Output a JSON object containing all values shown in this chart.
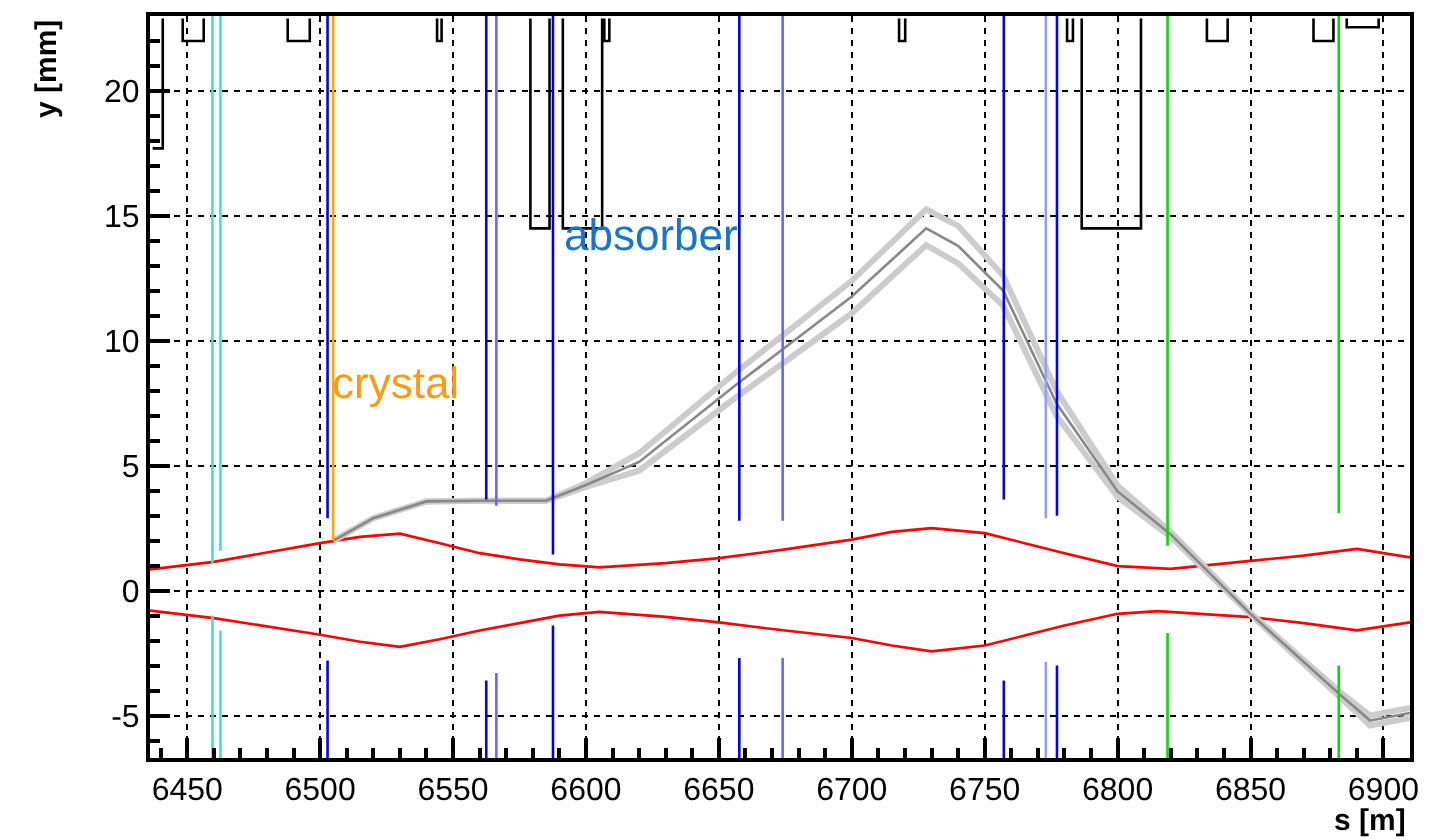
{
  "chart_data": {
    "type": "line",
    "xlabel": "s [m]",
    "ylabel": "y [mm]",
    "xlim": [
      6436,
      6910
    ],
    "xticks": [
      6450,
      6500,
      6550,
      6600,
      6650,
      6700,
      6750,
      6800,
      6850,
      6900
    ],
    "ylim": [
      -6.7,
      23.0
    ],
    "yticks": [
      -5,
      0,
      5,
      10,
      15,
      20
    ],
    "grid": true,
    "marker": "none",
    "line_style": "solid",
    "annotations": [
      {
        "text": "crystal",
        "x": 6503,
        "y": 8.3
      },
      {
        "text": "absorber",
        "x": 6590,
        "y": 14.2
      }
    ],
    "series": [
      {
        "color": "#000000",
        "x": [
          6440.8,
          6440.8,
          6437
        ],
        "values": [
          22.9,
          17.7,
          17.7
        ]
      },
      {
        "color": "#000000",
        "x": [
          6448.3,
          6448.3,
          6456.2,
          6456.2
        ],
        "values": [
          22.9,
          22.0,
          22.0,
          22.9
        ]
      },
      {
        "color": "#000000",
        "x": [
          6487.8,
          6487.8,
          6496.1,
          6496.1
        ],
        "values": [
          22.9,
          22.0,
          22.0,
          22.9
        ]
      },
      {
        "color": "#000000",
        "x": [
          6544.0,
          6544.0,
          6545.7,
          6545.7
        ],
        "values": [
          22.9,
          22.0,
          22.0,
          22.9
        ]
      },
      {
        "color": "#000000",
        "x": [
          6579.1,
          6579.1,
          6586.3,
          6586.3
        ],
        "values": [
          22.9,
          14.5,
          14.5,
          22.9
        ]
      },
      {
        "color": "#000000",
        "x": [
          6591.3,
          6591.3,
          6606.1,
          6606.1
        ],
        "values": [
          22.9,
          14.5,
          14.5,
          22.9
        ]
      },
      {
        "color": "#000000",
        "x": [
          6606.9,
          6606.9,
          6608.8,
          6608.8
        ],
        "values": [
          22.9,
          22.0,
          22.0,
          22.9
        ]
      },
      {
        "color": "#000000",
        "x": [
          6717.8,
          6717.8,
          6720.1,
          6720.1
        ],
        "values": [
          22.9,
          22.0,
          22.0,
          22.9
        ]
      },
      {
        "color": "#000000",
        "x": [
          6781.0,
          6781.0,
          6783.2,
          6783.2
        ],
        "values": [
          22.9,
          22.0,
          22.0,
          22.9
        ]
      },
      {
        "color": "#000000",
        "x": [
          6786.5,
          6786.5,
          6808.8,
          6808.8
        ],
        "values": [
          22.9,
          14.5,
          14.5,
          22.9
        ]
      },
      {
        "color": "#000000",
        "x": [
          6833.6,
          6833.6,
          6841.4,
          6841.4
        ],
        "values": [
          22.9,
          22.0,
          22.0,
          22.9
        ]
      },
      {
        "color": "#000000",
        "x": [
          6873.7,
          6873.7,
          6881.2,
          6881.2
        ],
        "values": [
          22.9,
          22.0,
          22.0,
          22.9
        ]
      },
      {
        "color": "#000000",
        "x": [
          6886.2,
          6886.2,
          6898.2,
          6898.2
        ],
        "values": [
          22.9,
          22.55,
          22.55,
          22.9
        ]
      },
      {
        "color": "#ff0000",
        "x": [
          6436,
          6460,
          6500,
          6515,
          6530,
          6545,
          6560,
          6575,
          6590,
          6605,
          6630,
          6650,
          6675,
          6700,
          6715,
          6730,
          6750,
          6765,
          6780,
          6800,
          6820,
          6850,
          6870,
          6890,
          6910
        ],
        "values": [
          0.85,
          1.15,
          1.9,
          2.15,
          2.28,
          1.9,
          1.5,
          1.25,
          1.05,
          0.93,
          1.1,
          1.3,
          1.65,
          2.04,
          2.35,
          2.5,
          2.3,
          1.9,
          1.5,
          0.98,
          0.87,
          1.19,
          1.4,
          1.67,
          1.33
        ]
      },
      {
        "color": "#ff0000",
        "x": [
          6436,
          6460,
          6500,
          6515,
          6530,
          6545,
          6560,
          6575,
          6590,
          6605,
          6630,
          6650,
          6675,
          6700,
          6715,
          6730,
          6750,
          6765,
          6780,
          6800,
          6815,
          6850,
          6870,
          6890,
          6910
        ],
        "values": [
          -0.8,
          -1.1,
          -1.77,
          -2.05,
          -2.25,
          -1.95,
          -1.6,
          -1.3,
          -1.0,
          -0.85,
          -1.05,
          -1.27,
          -1.6,
          -1.9,
          -2.2,
          -2.43,
          -2.2,
          -1.8,
          -1.4,
          -0.93,
          -0.82,
          -1.06,
          -1.3,
          -1.59,
          -1.27
        ]
      },
      {
        "color": "#cccccc",
        "x": [
          6505,
          6520,
          6540,
          6560,
          6585,
          6600,
          6620,
          6656,
          6700,
          6728,
          6740,
          6757,
          6777,
          6800,
          6820,
          6850,
          6883,
          6895,
          6910
        ],
        "values": [
          2.0,
          2.9,
          3.57,
          3.6,
          3.6,
          4.3,
          5.5,
          8.7,
          12.4,
          15.26,
          14.6,
          12.6,
          8.0,
          4.2,
          2.35,
          -0.9,
          -4.0,
          -5.0,
          -4.7
        ]
      },
      {
        "color": "#cccccc",
        "x": [
          6505,
          6520,
          6540,
          6560,
          6585,
          6600,
          6620,
          6656,
          6700,
          6728,
          6740,
          6757,
          6777,
          6800,
          6820,
          6850,
          6883,
          6895,
          6910
        ],
        "values": [
          2.0,
          2.9,
          3.57,
          3.6,
          3.6,
          4.15,
          4.8,
          7.7,
          11.1,
          13.83,
          13.1,
          11.4,
          7.0,
          3.75,
          2.15,
          -0.96,
          -4.2,
          -5.4,
          -5.1
        ]
      },
      {
        "color": "#888888",
        "x": [
          6505,
          6520,
          6540,
          6560,
          6585,
          6600,
          6620,
          6656,
          6700,
          6728,
          6740,
          6757,
          6777,
          6800,
          6820,
          6850,
          6883,
          6895,
          6910
        ],
        "values": [
          2.0,
          2.9,
          3.57,
          3.6,
          3.6,
          4.23,
          5.15,
          8.2,
          11.77,
          14.5,
          13.8,
          12.0,
          7.5,
          3.97,
          2.25,
          -0.93,
          -4.1,
          -5.2,
          -4.9
        ]
      },
      {
        "color": "#40e0d0",
        "x": [
          6459.5,
          6459.5
        ],
        "values": [
          23.0,
          1.1
        ]
      },
      {
        "color": "#40e0d0",
        "x": [
          6459.5,
          6459.5
        ],
        "values": [
          -1.0,
          -6.7
        ]
      },
      {
        "color": "#40e0d0",
        "x": [
          6462.5,
          6462.5
        ],
        "values": [
          23.0,
          1.6
        ]
      },
      {
        "color": "#40e0d0",
        "x": [
          6462.5,
          6462.5
        ],
        "values": [
          -1.6,
          -6.7
        ]
      },
      {
        "color": "#0000ff",
        "x": [
          6502.8,
          6502.8
        ],
        "values": [
          23.0,
          2.9
        ]
      },
      {
        "color": "#0000ff",
        "x": [
          6502.8,
          6502.8
        ],
        "values": [
          -2.8,
          -6.7
        ]
      },
      {
        "color": "#ffa500",
        "x": [
          6504.9,
          6504.9
        ],
        "values": [
          23.0,
          2.0
        ]
      },
      {
        "color": "#0000ff",
        "x": [
          6562.5,
          6562.5
        ],
        "values": [
          23.0,
          3.65
        ]
      },
      {
        "color": "#0000ff",
        "x": [
          6562.5,
          6562.5
        ],
        "values": [
          -3.6,
          -6.7
        ]
      },
      {
        "color": "#6666ff",
        "x": [
          6566.3,
          6566.3
        ],
        "values": [
          23.0,
          3.4
        ]
      },
      {
        "color": "#6666ff",
        "x": [
          6566.3,
          6566.3
        ],
        "values": [
          -3.3,
          -6.7
        ]
      },
      {
        "color": "#0000dd",
        "x": [
          6587.6,
          6587.6
        ],
        "values": [
          23.0,
          1.45
        ]
      },
      {
        "color": "#0000dd",
        "x": [
          6587.6,
          6587.6
        ],
        "values": [
          -1.4,
          -6.7
        ]
      },
      {
        "color": "#0000ff",
        "x": [
          6657.7,
          6657.7
        ],
        "values": [
          23.0,
          2.8
        ]
      },
      {
        "color": "#0000ff",
        "x": [
          6657.7,
          6657.7
        ],
        "values": [
          -2.7,
          -6.7
        ]
      },
      {
        "color": "#6666ff",
        "x": [
          6674,
          6674
        ],
        "values": [
          23.0,
          2.8
        ]
      },
      {
        "color": "#6666ff",
        "x": [
          6674,
          6674
        ],
        "values": [
          -2.7,
          -6.7
        ]
      },
      {
        "color": "#0000ff",
        "x": [
          6757.2,
          6757.2
        ],
        "values": [
          23.0,
          3.65
        ]
      },
      {
        "color": "#0000ff",
        "x": [
          6757.2,
          6757.2
        ],
        "values": [
          -3.6,
          -6.7
        ]
      },
      {
        "color": "#9999ff",
        "x": [
          6773,
          6773
        ],
        "values": [
          23.0,
          2.9
        ]
      },
      {
        "color": "#9999ff",
        "x": [
          6773,
          6773
        ],
        "values": [
          -2.85,
          -6.7
        ]
      },
      {
        "color": "#0000ff",
        "x": [
          6777.2,
          6777.2
        ],
        "values": [
          23.0,
          3.0
        ]
      },
      {
        "color": "#0000ff",
        "x": [
          6777.2,
          6777.2
        ],
        "values": [
          -3.0,
          -6.7
        ]
      },
      {
        "color": "#00dd00",
        "x": [
          6818.8,
          6818.8
        ],
        "values": [
          23.0,
          1.8
        ]
      },
      {
        "color": "#00dd00",
        "x": [
          6818.8,
          6818.8
        ],
        "values": [
          -1.7,
          -6.7
        ]
      },
      {
        "color": "#00dd00",
        "x": [
          6883.2,
          6883.2
        ],
        "values": [
          23.0,
          3.1
        ]
      },
      {
        "color": "#00dd00",
        "x": [
          6883.2,
          6883.2
        ],
        "values": [
          -3.0,
          -6.7
        ]
      }
    ]
  }
}
